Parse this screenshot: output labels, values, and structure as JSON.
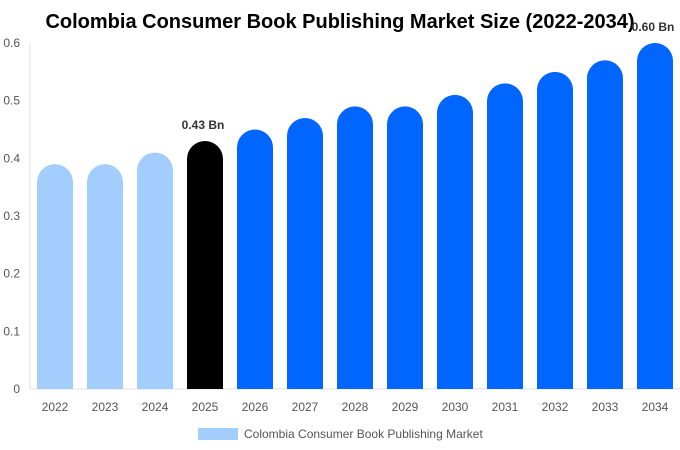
{
  "chart_data": {
    "type": "bar",
    "title": "Colombia Consumer Book Publishing Market Size (2022-2034)",
    "categories": [
      "2022",
      "2023",
      "2024",
      "2025",
      "2026",
      "2027",
      "2028",
      "2029",
      "2030",
      "2031",
      "2032",
      "2033",
      "2034"
    ],
    "series": [
      {
        "name": "Colombia Consumer Book Publishing Market",
        "values": [
          0.39,
          0.39,
          0.41,
          0.43,
          0.45,
          0.47,
          0.49,
          0.49,
          0.51,
          0.53,
          0.55,
          0.57,
          0.6
        ]
      }
    ],
    "data_labels": {
      "2025": "0.43 Bn",
      "2034": "0.60 Bn"
    },
    "ylim": [
      0,
      0.6
    ],
    "yticks": [
      "0",
      "0.1",
      "0.2",
      "0.3",
      "0.4",
      "0.5",
      "0.6"
    ],
    "grid": false,
    "legend_position": "bottom",
    "colors": {
      "historical": "#a3cdfc",
      "current": "#000000",
      "forecast": "#0066ff"
    }
  }
}
